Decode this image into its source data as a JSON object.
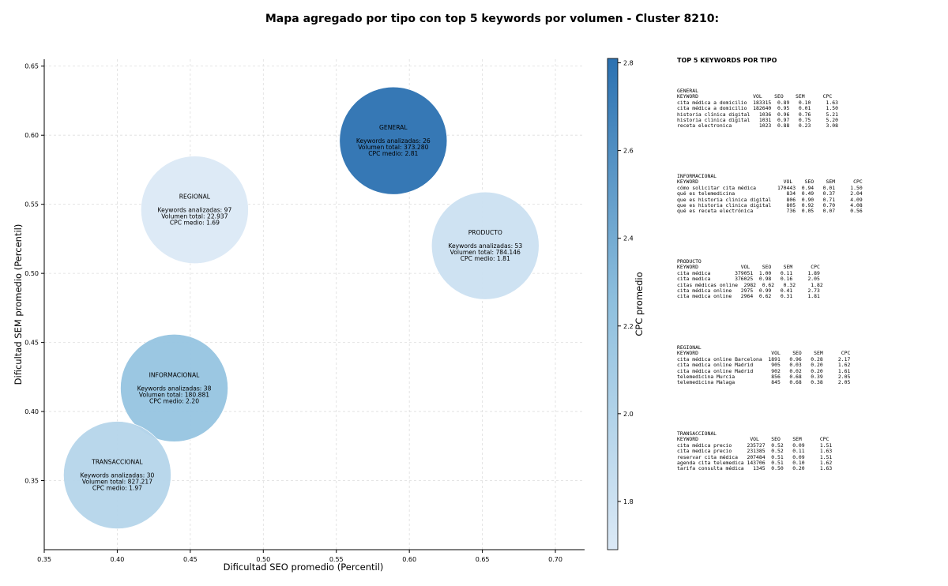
{
  "title": "Mapa agregado por tipo con top 5 keywords por volumen - Cluster 8210:",
  "chart_data": {
    "type": "scatter",
    "xlabel": "Dificultad SEO promedio (Percentil)",
    "ylabel": "Dificultad SEM promedio (Percentil)",
    "xlim": [
      0.35,
      0.72
    ],
    "ylim": [
      0.3,
      0.655
    ],
    "xticks": [
      "0.35",
      "0.40",
      "0.45",
      "0.50",
      "0.55",
      "0.60",
      "0.65",
      "0.70"
    ],
    "yticks": [
      "0.35",
      "0.40",
      "0.45",
      "0.50",
      "0.55",
      "0.60",
      "0.65"
    ],
    "grid": true,
    "colorbar": {
      "label": "CPC promedio",
      "min": 1.69,
      "max": 2.81,
      "ticks": [
        "1.8",
        "2.0",
        "2.2",
        "2.4",
        "2.6",
        "2.8"
      ],
      "color_low": "#dbe9f6",
      "color_high": "#2b71b1"
    },
    "points": [
      {
        "name": "GENERAL",
        "x": 0.589,
        "y": 0.596,
        "cpc": 2.81,
        "kw_line": "Keywords analizadas: 26",
        "vol_line": "Volumen total: 373.280",
        "cpc_line": "CPC medio: 2.81"
      },
      {
        "name": "REGIONAL",
        "x": 0.453,
        "y": 0.546,
        "cpc": 1.69,
        "kw_line": "Keywords analizadas: 97",
        "vol_line": "Volumen total: 22.937",
        "cpc_line": "CPC medio: 1.69"
      },
      {
        "name": "PRODUCTO",
        "x": 0.652,
        "y": 0.52,
        "cpc": 1.81,
        "kw_line": "Keywords analizadas: 53",
        "vol_line": "Volumen total: 784.146",
        "cpc_line": "CPC medio: 1.81"
      },
      {
        "name": "INFORMACIONAL",
        "x": 0.439,
        "y": 0.417,
        "cpc": 2.2,
        "kw_line": "Keywords analizadas: 38",
        "vol_line": "Volumen total: 180.881",
        "cpc_line": "CPC medio: 2.20"
      },
      {
        "name": "TRANSACCIONAL",
        "x": 0.4,
        "y": 0.354,
        "cpc": 1.97,
        "kw_line": "Keywords analizadas: 30",
        "vol_line": "Volumen total: 827.217",
        "cpc_line": "CPC medio: 1.97"
      }
    ]
  },
  "sidebar": {
    "title": "TOP 5 KEYWORDS POR TIPO",
    "sections": [
      {
        "name": "GENERAL",
        "text": "GENERAL\nKEYWORD                  VOL    SEO    SEM      CPC\ncita médica a domicilio  183315  0.89   0.10     1.63\ncita médica a domicilio  182640  0.95   0.01     1.50\nhistoria clínica digital   1036  0.96   0.76     5.21\nhistoria clinica digital   1031  0.97   0.75     5.20\nreceta electronica         1023  0.88   0.23     3.08"
      },
      {
        "name": "INFORMACIONAL",
        "text": "INFORMACIONAL\nKEYWORD                            VOL    SEO    SEM      CPC\ncómo solicitar cita médica       170443  0.94   0.01     1.50\nqué es telemedicina                 834  0.49   0.37     2.04\nque es historia clinica digital     806  0.90   0.71     4.09\nque es historia clinica digital     805  0.92   0.70     4.08\nqué es receta electrónica           736  0.05   0.07     0.56"
      },
      {
        "name": "PRODUCTO",
        "text": "PRODUCTO\nKEYWORD              VOL    SEO    SEM      CPC\ncita médica        379051  1.00   0.11     1.89\ncita medica        376025  0.98   0.16     2.05\ncitas médicas online  2982  0.62   0.32     1.82\ncita médica online   2975  0.99   0.41     2.73\ncita medica online   2964  0.62   0.31     1.81"
      },
      {
        "name": "REGIONAL",
        "text": "REGIONAL\nKEYWORD                        VOL    SEO    SEM      CPC\ncita médica online Barcelona  1891   0.96   0.28     2.17\ncita medica online Madrid      905   0.03   0.20     1.62\ncita médica online Madrid      902   0.02   0.20     1.61\ntelemedicina Murcia            856   0.68   0.39     2.05\ntelemedicina Malaga            845   0.68   0.38     2.05"
      },
      {
        "name": "TRANSACCIONAL",
        "text": "TRANSACCIONAL\nKEYWORD                 VOL    SEO    SEM      CPC\ncita médica precio     235727  0.52   0.09     1.51\ncita medica precio     231385  0.52   0.11     1.63\nreservar cita médica   207484  0.51   0.09     1.51\nagenda cita telemedica 143706  0.51   0.10     1.62\ntarifa consulta médica   1345  0.50   0.20     1.63"
      }
    ]
  }
}
